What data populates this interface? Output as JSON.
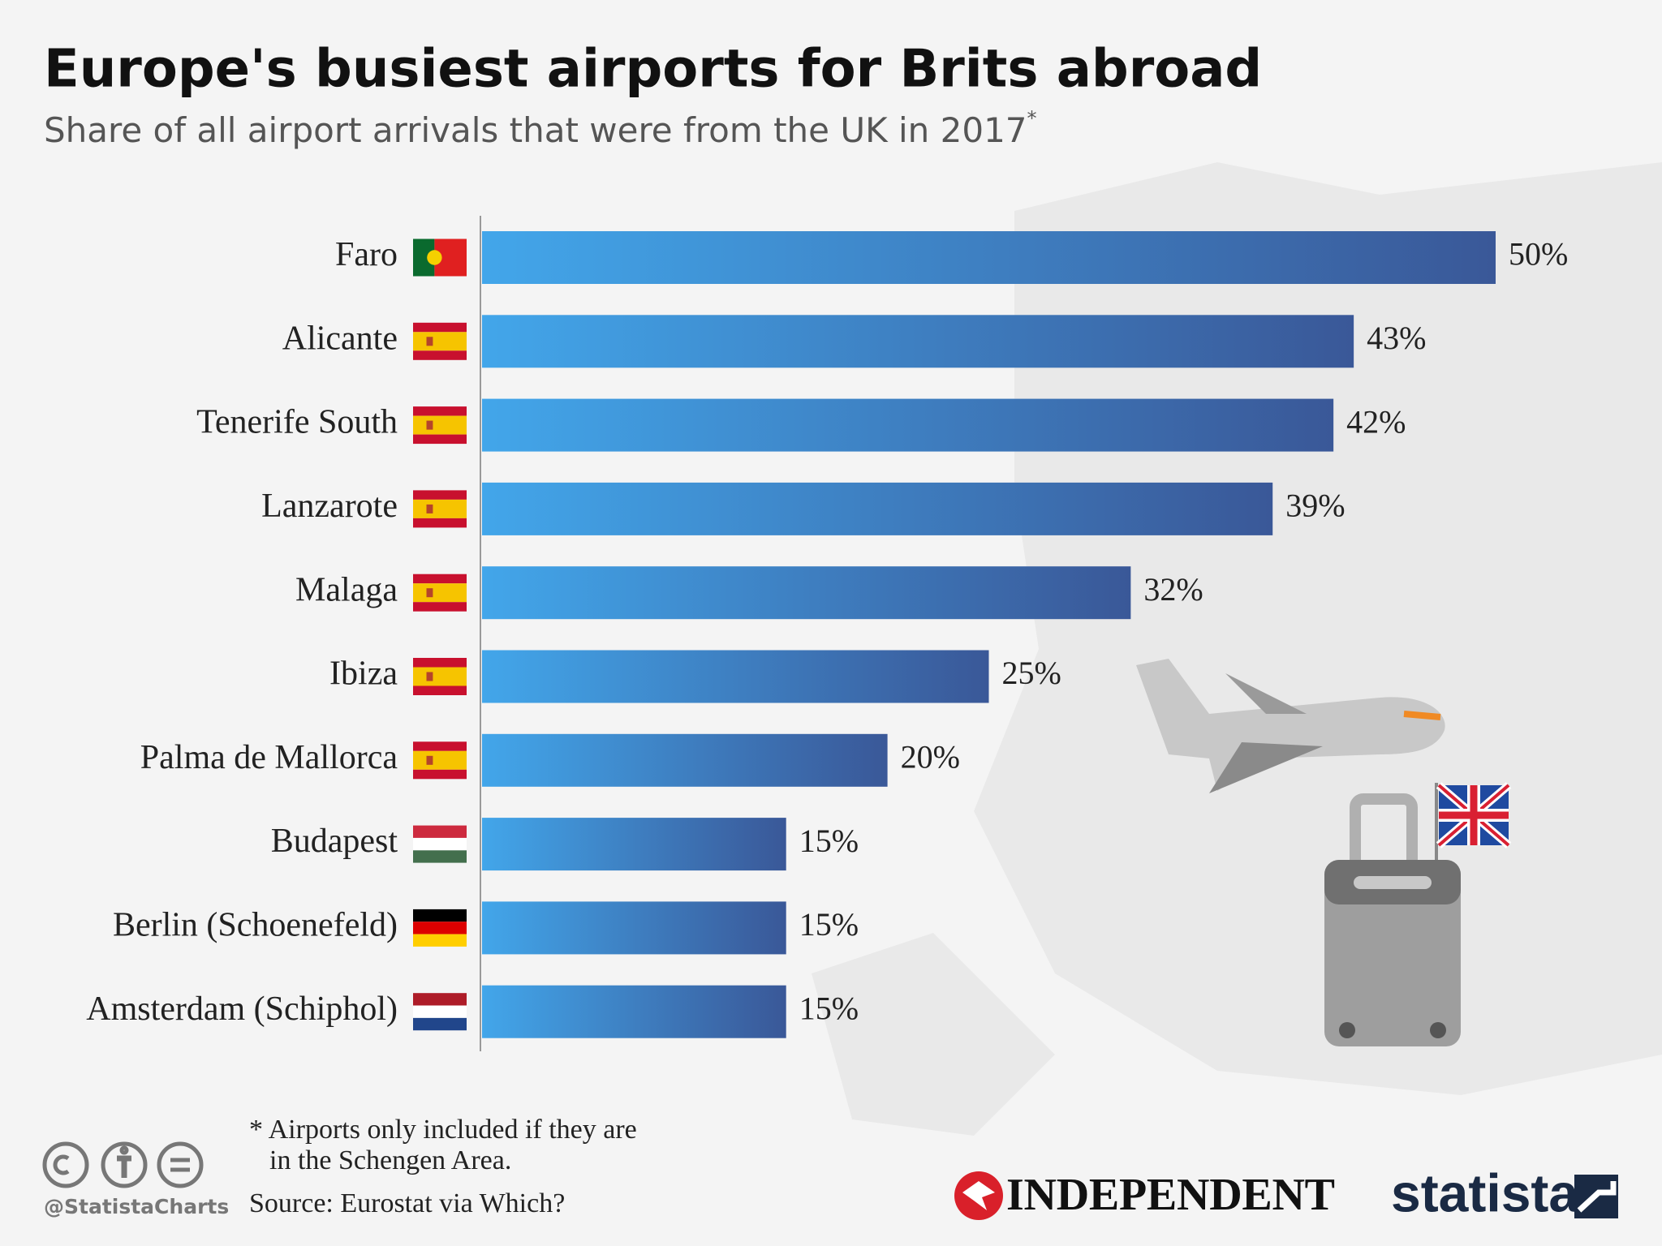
{
  "chart_data": {
    "type": "bar",
    "orientation": "horizontal",
    "title": "Europe's busiest airports for Brits abroad",
    "subtitle": "Share of all airport arrivals that were from the UK in 2017",
    "subtitle_note": "*",
    "categories": [
      "Faro",
      "Alicante",
      "Tenerife South",
      "Lanzarote",
      "Malaga",
      "Ibiza",
      "Palma de Mallorca",
      "Budapest",
      "Berlin (Schoenefeld)",
      "Amsterdam (Schiphol)"
    ],
    "values": [
      50,
      43,
      42,
      39,
      32,
      25,
      20,
      15,
      15,
      15
    ],
    "value_labels": [
      "50%",
      "43%",
      "42%",
      "39%",
      "32%",
      "25%",
      "20%",
      "15%",
      "15%",
      "15%"
    ],
    "xlim": [
      0,
      50
    ],
    "color": [
      "#42a6ea",
      "#3a5898"
    ],
    "footnote": [
      "* Airports only included if they are",
      "in the Schengen Area."
    ],
    "source": "Source: Eurostat via Which?",
    "handle": "@StatistaCharts",
    "logos": [
      "INDEPENDENT",
      "statista"
    ]
  }
}
